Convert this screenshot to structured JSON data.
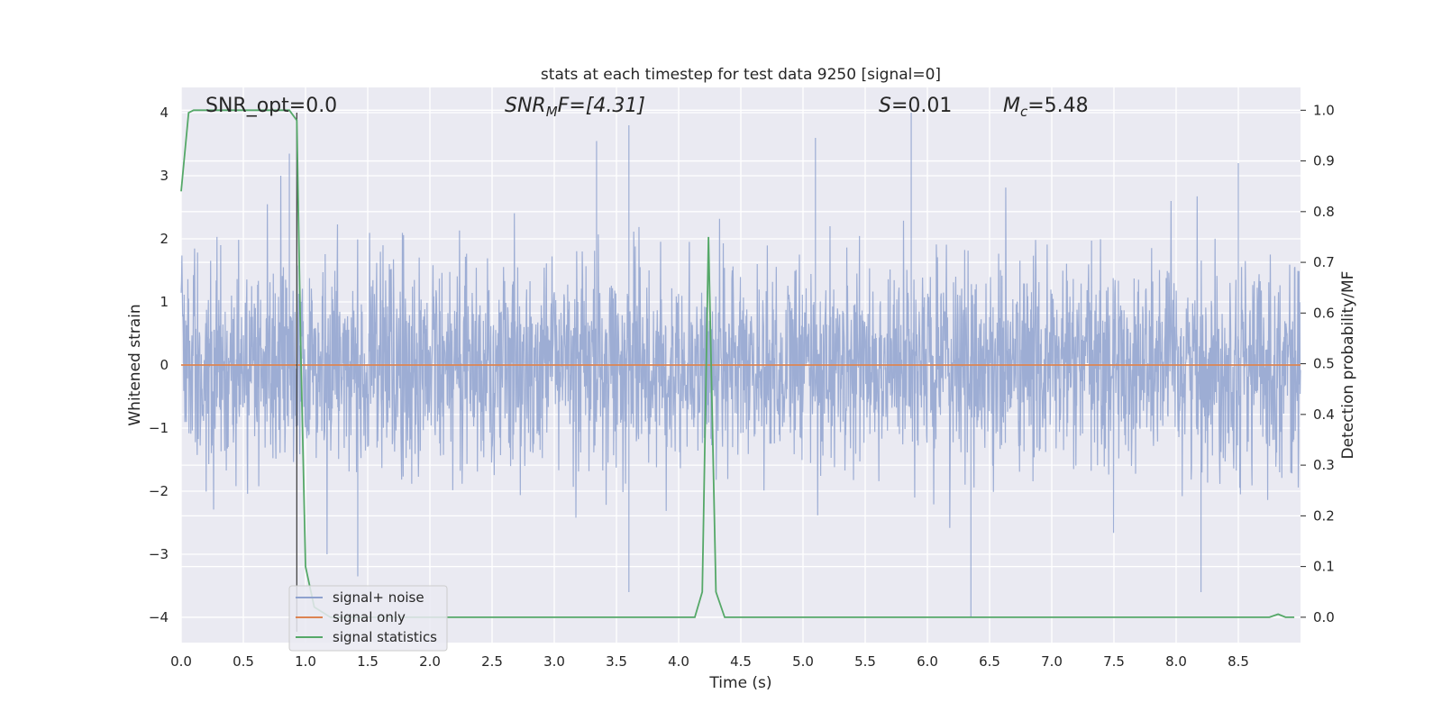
{
  "chart_data": {
    "type": "line",
    "title": "stats at each timestep for test data 9250 [signal=0]",
    "xlabel": "Time (s)",
    "ylabel": "Whitened strain",
    "ylabel_right": "Detection probability/MF",
    "xlim": [
      0,
      9.0
    ],
    "ylim": [
      -4.4,
      4.4
    ],
    "ylim_right": [
      -0.05,
      1.045
    ],
    "x_ticks": [
      0.0,
      0.5,
      1.0,
      1.5,
      2.0,
      2.5,
      3.0,
      3.5,
      4.0,
      4.5,
      5.0,
      5.5,
      6.0,
      6.5,
      7.0,
      7.5,
      8.0,
      8.5
    ],
    "x_tick_labels": [
      "0.0",
      "0.5",
      "1.0",
      "1.5",
      "2.0",
      "2.5",
      "3.0",
      "3.5",
      "4.0",
      "4.5",
      "5.0",
      "5.5",
      "6.0",
      "6.5",
      "7.0",
      "7.5",
      "8.0",
      "8.5"
    ],
    "y_ticks": [
      -4,
      -3,
      -2,
      -1,
      0,
      1,
      2,
      3,
      4
    ],
    "y_tick_labels": [
      "−4",
      "−3",
      "−2",
      "−1",
      "0",
      "1",
      "2",
      "3",
      "4"
    ],
    "y_ticks_right": [
      0.0,
      0.1,
      0.2,
      0.3,
      0.4,
      0.5,
      0.6,
      0.7,
      0.8,
      0.9,
      1.0
    ],
    "y_tick_labels_right": [
      "0.0",
      "0.1",
      "0.2",
      "0.3",
      "0.4",
      "0.5",
      "0.6",
      "0.7",
      "0.8",
      "0.9",
      "1.0"
    ],
    "grid": true,
    "legend_position": "lower-left",
    "vertical_marker_x": 0.93,
    "annotations": {
      "snr_opt": "SNR_opt=0.0",
      "snr_mf_base": "SNR",
      "snr_mf_sub": "M",
      "snr_mf_rest": "F=[4.31]",
      "s_base": "S",
      "s_rest": "=0.01",
      "mc_base": "M",
      "mc_sub": "c",
      "mc_rest": "=5.48"
    },
    "series": [
      {
        "name": "signal+ noise",
        "color": "#8fa2cf",
        "axis": "left",
        "note": "white-noise strain, sampled procedurally",
        "amplitude_scale": 0.8,
        "peaks": [
          [
            0.87,
            3.35
          ],
          [
            3.34,
            3.55
          ],
          [
            3.6,
            3.8
          ],
          [
            5.1,
            3.6
          ],
          [
            5.87,
            4.0
          ],
          [
            6.35,
            -4.0
          ],
          [
            8.2,
            -3.6
          ],
          [
            8.5,
            3.2
          ],
          [
            3.6,
            -3.6
          ],
          [
            1.42,
            -3.35
          ]
        ]
      },
      {
        "name": "signal only",
        "color": "#dd8452",
        "axis": "left",
        "x": [
          0.0,
          9.0
        ],
        "y": [
          0.0,
          0.0
        ]
      },
      {
        "name": "signal statistics",
        "color": "#55a868",
        "axis": "right",
        "x": [
          0.0,
          0.06,
          0.1,
          0.2,
          0.3,
          0.4,
          0.5,
          0.6,
          0.7,
          0.8,
          0.87,
          0.93,
          0.96,
          1.0,
          1.07,
          1.2,
          1.5,
          2.0,
          3.0,
          4.0,
          4.13,
          4.19,
          4.24,
          4.3,
          4.37,
          4.5,
          5.0,
          6.0,
          7.0,
          8.0,
          8.75,
          8.82,
          8.88,
          8.95
        ],
        "y": [
          0.84,
          0.995,
          1.0,
          1.0,
          1.0,
          1.0,
          1.0,
          1.0,
          1.0,
          1.0,
          1.0,
          0.98,
          0.55,
          0.1,
          0.02,
          0.0,
          0.0,
          0.0,
          0.0,
          0.0,
          0.0,
          0.05,
          0.75,
          0.05,
          0.0,
          0.0,
          0.0,
          0.0,
          0.0,
          0.0,
          0.0,
          0.006,
          0.0,
          0.0
        ]
      }
    ]
  }
}
